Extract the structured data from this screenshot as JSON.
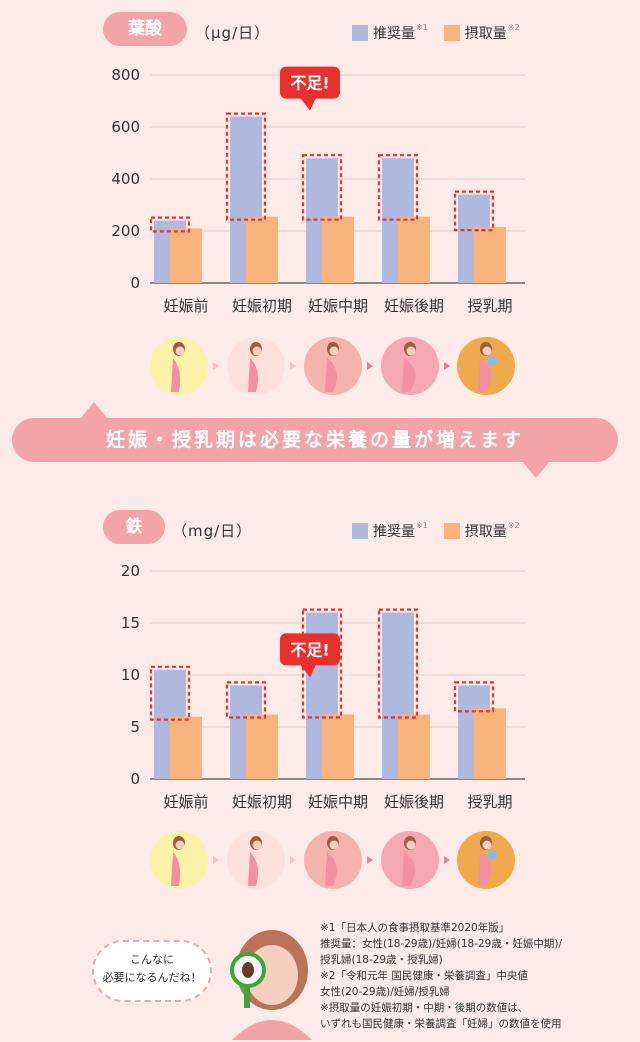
{
  "sections": [
    {
      "badge": "葉酸",
      "unit": "（μg/日）"
    },
    {
      "badge": "鉄",
      "unit": "（mg/日）"
    }
  ],
  "legend": {
    "recommended": "推奨量",
    "rec_note": "※1",
    "intake": "摂取量",
    "intake_note": "※2"
  },
  "callout": "不足!",
  "banner": "妊娠・授乳期は必要な栄養の量が増えます",
  "speech": [
    "こんなに",
    "必要になるんだね！"
  ],
  "notes": [
    "※1「日本人の食事摂取基準2020年版」",
    "推奨量：女性(18-29歳)/妊婦(18-29歳・妊娠中期)/",
    "授乳婦(18-29歳・授乳婦)",
    "※2「令和元年 国民健康・栄養調査」中央値",
    "女性(20-29歳)/妊婦/授乳婦",
    "※摂取量の妊娠初期・中期・後期の数値は、",
    "いずれも国民健康・栄養調査「妊婦」の数値を使用"
  ],
  "colors": {
    "recommended": "#aeb9dd",
    "intake": "#f9b47e",
    "accent": "#e8312f",
    "pink": "#f2a4a8"
  },
  "stage_icons": [
    "pre-pregnancy-woman-icon",
    "early-pregnancy-woman-icon",
    "mid-pregnancy-woman-icon",
    "late-pregnancy-woman-icon",
    "breastfeeding-woman-icon"
  ],
  "chart_data": [
    {
      "type": "bar",
      "title": "葉酸",
      "ylabel": "（μg/日）",
      "ylim": [
        0,
        800
      ],
      "yticks": [
        0,
        200,
        400,
        600,
        800
      ],
      "categories": [
        "妊娠前",
        "妊娠初期",
        "妊娠中期",
        "妊娠後期",
        "授乳期"
      ],
      "series": [
        {
          "name": "推奨量",
          "values": [
            240,
            640,
            480,
            480,
            340
          ]
        },
        {
          "name": "摂取量",
          "values": [
            210,
            255,
            255,
            255,
            215
          ]
        }
      ],
      "callout_category": "妊娠初期",
      "grid": true
    },
    {
      "type": "bar",
      "title": "鉄",
      "ylabel": "（mg/日）",
      "ylim": [
        0,
        20
      ],
      "yticks": [
        0,
        5,
        10,
        15,
        20
      ],
      "categories": [
        "妊娠前",
        "妊娠初期",
        "妊娠中期",
        "妊娠後期",
        "授乳期"
      ],
      "series": [
        {
          "name": "推奨量",
          "values": [
            10.5,
            9.0,
            16.0,
            16.0,
            9.0
          ]
        },
        {
          "name": "摂取量",
          "values": [
            6.0,
            6.2,
            6.2,
            6.2,
            6.8
          ]
        }
      ],
      "callout_category": "妊娠初期",
      "grid": true
    }
  ]
}
